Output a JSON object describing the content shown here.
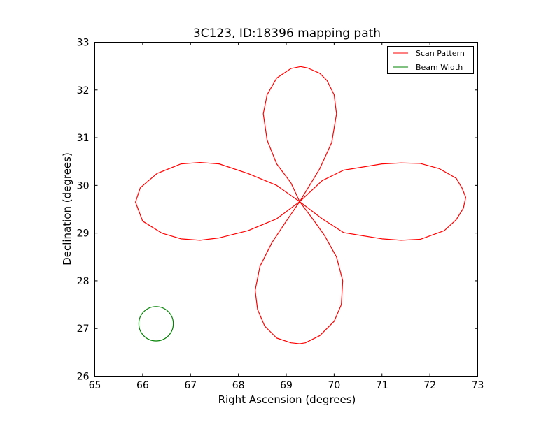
{
  "chart_data": {
    "type": "line",
    "title": "3C123, ID:18396 mapping path",
    "xlabel": "Right Ascension (degrees)",
    "ylabel": "Declination (degrees)",
    "xlim": [
      65,
      73
    ],
    "ylim": [
      26,
      33
    ],
    "xticks": [
      65,
      66,
      67,
      68,
      69,
      70,
      71,
      72,
      73
    ],
    "yticks": [
      26,
      27,
      28,
      29,
      30,
      31,
      32,
      33
    ],
    "xtick_labels": [
      "65",
      "66",
      "67",
      "68",
      "69",
      "70",
      "71",
      "72",
      "73"
    ],
    "ytick_labels": [
      "26",
      "27",
      "28",
      "29",
      "30",
      "31",
      "32",
      "33"
    ],
    "grid": false,
    "legend_position": "top-right",
    "series": [
      {
        "name": "Scan Pattern",
        "color": "#ff0000",
        "shape": "rose curve",
        "center": [
          69.28,
          29.66
        ],
        "lobe_extent": {
          "east": 72.75,
          "west": 65.85,
          "north": 32.68,
          "south": 26.66
        },
        "points": [
          [
            69.28,
            29.66
          ],
          [
            69.75,
            30.1
          ],
          [
            70.2,
            30.32
          ],
          [
            71.0,
            30.45
          ],
          [
            71.4,
            30.47
          ],
          [
            71.8,
            30.46
          ],
          [
            72.2,
            30.35
          ],
          [
            72.55,
            30.15
          ],
          [
            72.67,
            29.95
          ],
          [
            72.75,
            29.75
          ],
          [
            72.7,
            29.52
          ],
          [
            72.55,
            29.28
          ],
          [
            72.3,
            29.05
          ],
          [
            71.8,
            28.87
          ],
          [
            71.4,
            28.85
          ],
          [
            71.0,
            28.88
          ],
          [
            70.2,
            29.01
          ],
          [
            69.75,
            29.3
          ],
          [
            69.28,
            29.66
          ],
          [
            69.1,
            30.05
          ],
          [
            68.8,
            30.45
          ],
          [
            68.6,
            30.95
          ],
          [
            68.52,
            31.5
          ],
          [
            68.6,
            31.9
          ],
          [
            68.8,
            32.25
          ],
          [
            69.1,
            32.45
          ],
          [
            69.3,
            32.49
          ],
          [
            69.45,
            32.46
          ],
          [
            69.7,
            32.35
          ],
          [
            69.85,
            32.2
          ],
          [
            70.0,
            31.9
          ],
          [
            70.05,
            31.5
          ],
          [
            69.95,
            30.9
          ],
          [
            69.7,
            30.35
          ],
          [
            69.28,
            29.66
          ],
          [
            68.8,
            29.3
          ],
          [
            68.2,
            29.05
          ],
          [
            67.6,
            28.9
          ],
          [
            67.2,
            28.85
          ],
          [
            66.8,
            28.88
          ],
          [
            66.4,
            29.0
          ],
          [
            66.0,
            29.25
          ],
          [
            65.85,
            29.65
          ],
          [
            65.95,
            29.95
          ],
          [
            66.3,
            30.25
          ],
          [
            66.8,
            30.45
          ],
          [
            67.2,
            30.48
          ],
          [
            67.6,
            30.45
          ],
          [
            68.2,
            30.25
          ],
          [
            68.8,
            30.0
          ],
          [
            69.28,
            29.66
          ],
          [
            69.55,
            29.3
          ],
          [
            69.8,
            28.95
          ],
          [
            70.05,
            28.5
          ],
          [
            70.18,
            28.0
          ],
          [
            70.15,
            27.5
          ],
          [
            70.0,
            27.15
          ],
          [
            69.7,
            26.85
          ],
          [
            69.4,
            26.7
          ],
          [
            69.28,
            26.68
          ],
          [
            69.1,
            26.7
          ],
          [
            68.8,
            26.8
          ],
          [
            68.55,
            27.05
          ],
          [
            68.4,
            27.4
          ],
          [
            68.35,
            27.8
          ],
          [
            68.45,
            28.3
          ],
          [
            68.7,
            28.8
          ],
          [
            69.0,
            29.25
          ],
          [
            69.28,
            29.66
          ]
        ]
      },
      {
        "name": "Beam Width",
        "color": "#008000",
        "shape": "circle",
        "center": [
          66.28,
          27.1
        ],
        "radius_deg": 0.36
      }
    ]
  }
}
